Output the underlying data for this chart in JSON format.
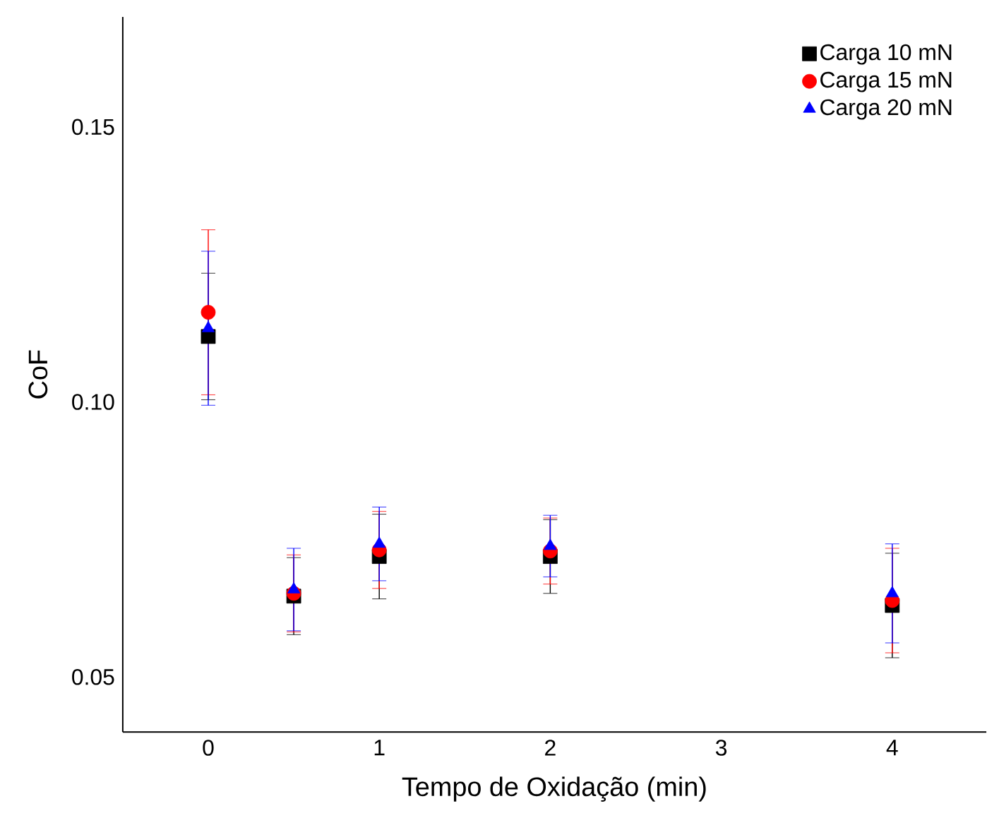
{
  "chart_data": {
    "type": "scatter",
    "xlabel": "Tempo de Oxidação (min)",
    "ylabel": "CoF",
    "x": [
      0,
      0.5,
      1,
      2,
      4
    ],
    "xlim": [
      -0.5,
      4.55
    ],
    "xticks": [
      0,
      1,
      2,
      3,
      4
    ],
    "ylim": [
      0.04,
      0.17
    ],
    "yticks": [
      0.05,
      {
        "value": 0.1,
        "label": "0.10"
      },
      0.15
    ],
    "grid": false,
    "legend": "top right",
    "series": [
      {
        "name": "Carga 10 mN",
        "color": "#000000",
        "marker": "square",
        "values": [
          0.1119,
          0.0647,
          0.0719,
          0.0719,
          0.063
        ],
        "errors": [
          0.0115,
          0.007,
          0.0077,
          0.0067,
          0.0095
        ]
      },
      {
        "name": "Carga 15 mN",
        "color": "#ff0000",
        "marker": "circle",
        "values": [
          0.1163,
          0.0652,
          0.0731,
          0.0729,
          0.0639
        ],
        "errors": [
          0.015,
          0.007,
          0.007,
          0.006,
          0.0095
        ]
      },
      {
        "name": "Carga 20 mN",
        "color": "#0000ff",
        "marker": "triangle",
        "values": [
          0.1134,
          0.0659,
          0.0742,
          0.0738,
          0.0652
        ],
        "errors": [
          0.014,
          0.0075,
          0.0067,
          0.0056,
          0.009
        ]
      }
    ]
  }
}
